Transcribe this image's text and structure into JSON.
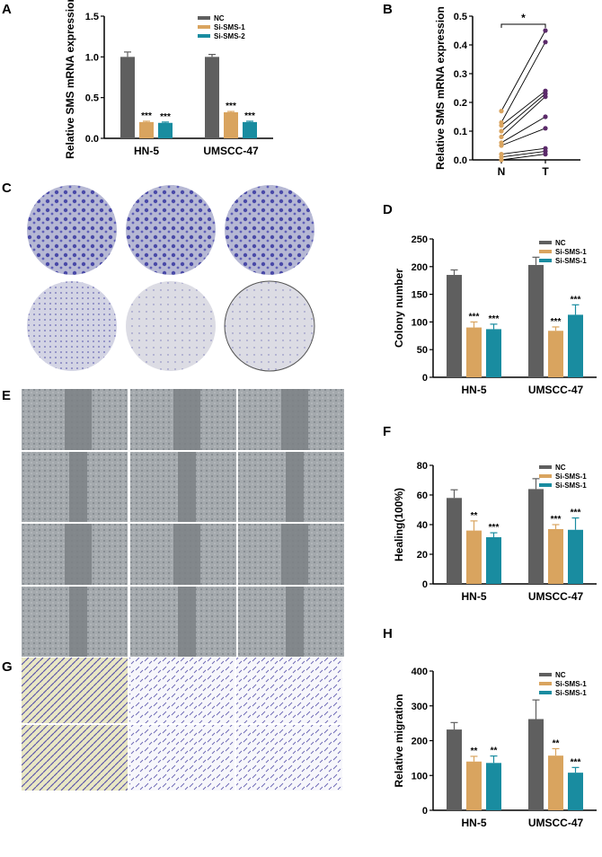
{
  "panels": {
    "A": "A",
    "B": "B",
    "C": "C",
    "D": "D",
    "E": "E",
    "F": "F",
    "G": "G",
    "H": "H"
  },
  "colors": {
    "NC": "#5f5f5f",
    "SMS1": "#d9a45f",
    "SMS2": "#198ca0",
    "paired_N": "#d9a45f",
    "paired_T": "#5b2a6a",
    "dish_stain": "#5b5bb0",
    "wound_cells": "#9aa0a4"
  },
  "chart_data": [
    {
      "panel": "A",
      "type": "bar",
      "ylabel": "Relative SMS mRNA expression",
      "ylim": [
        0,
        1.5
      ],
      "yticks": [
        "0.0",
        "0.5",
        "1.0",
        "1.5"
      ],
      "categories": [
        "HN-5",
        "UMSCC-47"
      ],
      "series": [
        {
          "name": "NC",
          "values": [
            1.0,
            1.0
          ],
          "err": [
            0.06,
            0.03
          ],
          "sig": [
            "",
            ""
          ]
        },
        {
          "name": "Si-SMS-1",
          "values": [
            0.2,
            0.32
          ],
          "err": [
            0.01,
            0.01
          ],
          "sig": [
            "***",
            ""
          ]
        },
        {
          "name": "Si-SMS-2",
          "values": [
            0.19,
            0.2
          ],
          "err": [
            0.01,
            0.01
          ],
          "sig": [
            "***",
            "***"
          ]
        }
      ],
      "extra_sig": [
        {
          "category": 1,
          "series": 1,
          "text": "***"
        }
      ]
    },
    {
      "panel": "B",
      "type": "scatter",
      "ylabel": "Relative SMS mRNA expression",
      "ylim": [
        0,
        0.5
      ],
      "yticks": [
        "0.0",
        "0.1",
        "0.2",
        "0.3",
        "0.4",
        "0.5"
      ],
      "categories": [
        "N",
        "T"
      ],
      "significance": "*",
      "pairs": [
        [
          0.17,
          0.45
        ],
        [
          0.13,
          0.41
        ],
        [
          0.12,
          0.24
        ],
        [
          0.1,
          0.23
        ],
        [
          0.08,
          0.22
        ],
        [
          0.06,
          0.15
        ],
        [
          0.05,
          0.11
        ],
        [
          0.02,
          0.04
        ],
        [
          0.01,
          0.03
        ],
        [
          0.0,
          0.02
        ]
      ]
    },
    {
      "panel": "D",
      "type": "bar",
      "ylabel": "Colony number",
      "ylim": [
        0,
        250
      ],
      "yticks": [
        "0",
        "50",
        "100",
        "150",
        "200",
        "250"
      ],
      "categories": [
        "HN-5",
        "UMSCC-47"
      ],
      "series": [
        {
          "name": "NC",
          "values": [
            185,
            203
          ],
          "err": [
            9,
            14
          ],
          "sig": [
            "",
            ""
          ]
        },
        {
          "name": "Si-SMS-1",
          "values": [
            90,
            84
          ],
          "err": [
            10,
            7
          ],
          "sig": [
            "***",
            "***"
          ]
        },
        {
          "name": "Si-SMS-1",
          "values": [
            87,
            113
          ],
          "err": [
            9,
            18
          ],
          "sig": [
            "***",
            "***"
          ]
        }
      ]
    },
    {
      "panel": "F",
      "type": "bar",
      "ylabel": "Healing(100%)",
      "ylim": [
        0,
        80
      ],
      "yticks": [
        "0",
        "20",
        "40",
        "60",
        "80"
      ],
      "categories": [
        "HN-5",
        "UMSCC-47"
      ],
      "series": [
        {
          "name": "NC",
          "values": [
            58,
            64
          ],
          "err": [
            5.5,
            7
          ],
          "sig": [
            "",
            ""
          ]
        },
        {
          "name": "Si-SMS-1",
          "values": [
            36,
            37
          ],
          "err": [
            6.5,
            3
          ],
          "sig": [
            "**",
            "***"
          ]
        },
        {
          "name": "Si-SMS-1",
          "values": [
            31.5,
            36.5
          ],
          "err": [
            3,
            8
          ],
          "sig": [
            "***",
            "***"
          ]
        }
      ]
    },
    {
      "panel": "H",
      "type": "bar",
      "ylabel": "Relative migration",
      "ylim": [
        0,
        400
      ],
      "yticks": [
        "0",
        "100",
        "200",
        "300",
        "400"
      ],
      "categories": [
        "HN-5",
        "UMSCC-47"
      ],
      "series": [
        {
          "name": "NC",
          "values": [
            232,
            262
          ],
          "err": [
            20,
            55
          ],
          "sig": [
            "",
            ""
          ]
        },
        {
          "name": "Si-SMS-1",
          "values": [
            140,
            157
          ],
          "err": [
            15,
            20
          ],
          "sig": [
            "**",
            "**"
          ]
        },
        {
          "name": "Si-SMS-1",
          "values": [
            136,
            108
          ],
          "err": [
            20,
            15
          ],
          "sig": [
            "**",
            "***"
          ]
        }
      ]
    }
  ]
}
